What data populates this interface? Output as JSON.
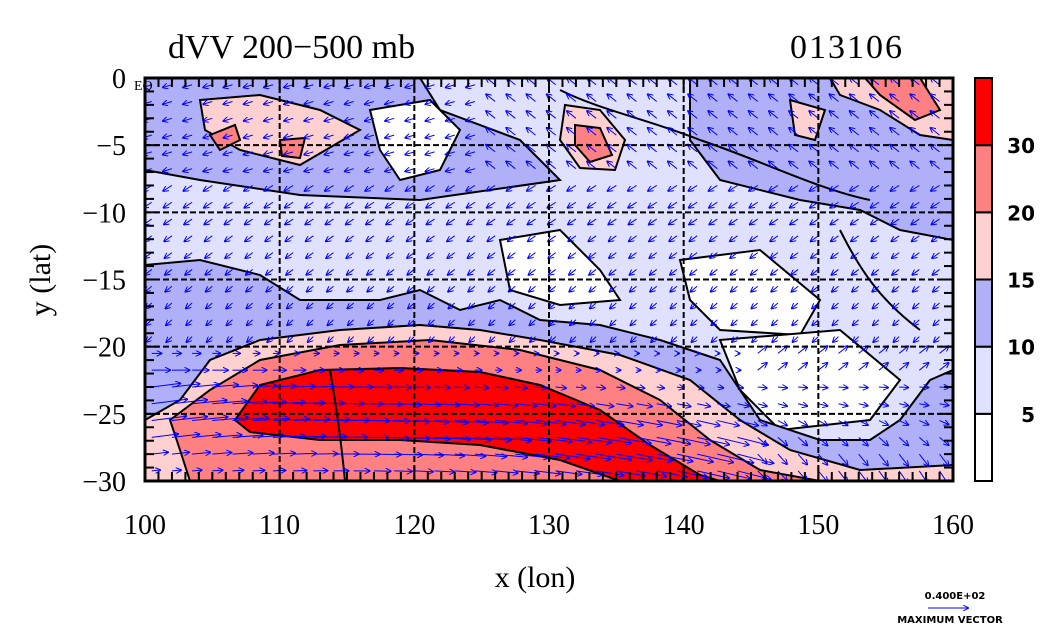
{
  "chart_data": {
    "type": "heatmap",
    "title": "dVV 200-500 mb",
    "title_display": "dVV 200−500 mb",
    "date_label": "013106",
    "xlabel": "x (lon)",
    "ylabel": "y (lat)",
    "xlim": [
      100,
      160
    ],
    "ylim": [
      -30,
      0
    ],
    "xticks": [
      100,
      110,
      120,
      130,
      140,
      150,
      160
    ],
    "xtick_labels": [
      "100",
      "110",
      "120",
      "130",
      "140",
      "150",
      "160"
    ],
    "yticks": [
      0,
      -5,
      -10,
      -15,
      -20,
      -25,
      -30
    ],
    "ytick_labels": [
      "0",
      "−5",
      "−10",
      "−15",
      "−20",
      "−25",
      "−30"
    ],
    "corner_label": "EQ",
    "grid": true,
    "grid_style": "dashed",
    "colorbar": {
      "placement": "right",
      "levels": [
        5,
        10,
        15,
        20,
        30
      ],
      "level_labels": [
        "5",
        "10",
        "15",
        "20",
        "30"
      ],
      "colors": [
        "#ffffff",
        "#e0e0ff",
        "#b0b0f8",
        "#ffd0d0",
        "#ff8080",
        "#ff0000"
      ]
    },
    "vector_legend": {
      "value": "0.400E+02",
      "label": "MAXIMUM VECTOR"
    },
    "regions": [
      {
        "level_index": 2,
        "desc": "zonal band lat -14..-21"
      },
      {
        "level_index": 3,
        "desc": "jet outer"
      },
      {
        "level_index": 4,
        "desc": "jet middle"
      },
      {
        "level_index": 5,
        "desc": "jet core near 110-140E, 22-30S"
      }
    ],
    "vector_color": "#0000ff"
  }
}
